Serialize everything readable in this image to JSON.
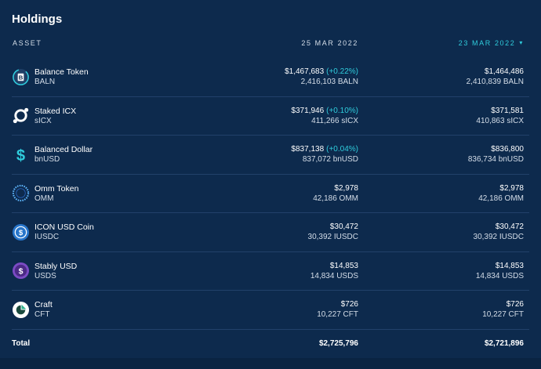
{
  "title": "Holdings",
  "header": {
    "asset": "ASSET",
    "date1": "25 MAR 2022",
    "date2": "23 MAR 2022",
    "date2_caret": "▾"
  },
  "rows": [
    {
      "name": "Balance Token",
      "symbol": "BALN",
      "icon": "baln-icon",
      "v1": "$1,467,683",
      "chg": "(+0.22%)",
      "q1": "2,416,103 BALN",
      "v2": "$1,464,486",
      "q2": "2,410,839 BALN"
    },
    {
      "name": "Staked ICX",
      "symbol": "sICX",
      "icon": "sicx-icon",
      "v1": "$371,946",
      "chg": "(+0.10%)",
      "q1": "411,266 sICX",
      "v2": "$371,581",
      "q2": "410,863 sICX"
    },
    {
      "name": "Balanced Dollar",
      "symbol": "bnUSD",
      "icon": "bnusd-icon",
      "v1": "$837,138",
      "chg": "(+0.04%)",
      "q1": "837,072 bnUSD",
      "v2": "$836,800",
      "q2": "836,734 bnUSD"
    },
    {
      "name": "Omm Token",
      "symbol": "OMM",
      "icon": "omm-icon",
      "v1": "$2,978",
      "chg": "",
      "q1": "42,186 OMM",
      "v2": "$2,978",
      "q2": "42,186 OMM"
    },
    {
      "name": "ICON USD Coin",
      "symbol": "IUSDC",
      "icon": "iusdc-icon",
      "v1": "$30,472",
      "chg": "",
      "q1": "30,392 IUSDC",
      "v2": "$30,472",
      "q2": "30,392 IUSDC"
    },
    {
      "name": "Stably USD",
      "symbol": "USDS",
      "icon": "usds-icon",
      "v1": "$14,853",
      "chg": "",
      "q1": "14,834 USDS",
      "v2": "$14,853",
      "q2": "14,834 USDS"
    },
    {
      "name": "Craft",
      "symbol": "CFT",
      "icon": "craft-icon",
      "v1": "$726",
      "chg": "",
      "q1": "10,227 CFT",
      "v2": "$726",
      "q2": "10,227 CFT"
    }
  ],
  "total": {
    "label": "Total",
    "v1": "$2,725,796",
    "v2": "$2,721,896"
  },
  "colors": {
    "background": "#0d2a4d",
    "accent": "#2fccdc",
    "separator": "#22416a"
  }
}
